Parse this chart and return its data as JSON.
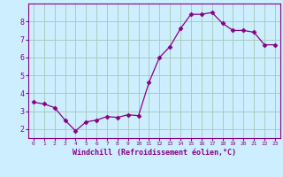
{
  "x": [
    0,
    1,
    2,
    3,
    4,
    5,
    6,
    7,
    8,
    9,
    10,
    11,
    12,
    13,
    14,
    15,
    16,
    17,
    18,
    19,
    20,
    21,
    22,
    23
  ],
  "y": [
    3.5,
    3.4,
    3.2,
    2.5,
    1.9,
    2.4,
    2.5,
    2.7,
    2.65,
    2.8,
    2.75,
    4.6,
    6.0,
    6.6,
    7.6,
    8.4,
    8.4,
    8.5,
    7.9,
    7.5,
    7.5,
    7.4,
    6.7,
    6.7
  ],
  "line_color": "#880088",
  "marker": "D",
  "marker_size": 2.5,
  "bg_color": "#cceeff",
  "grid_color": "#aaccbb",
  "xlabel": "Windchill (Refroidissement éolien,°C)",
  "ylabel_ticks": [
    2,
    3,
    4,
    5,
    6,
    7,
    8
  ],
  "xlim": [
    -0.5,
    23.5
  ],
  "ylim": [
    1.5,
    9.0
  ],
  "tick_color": "#880088",
  "spine_color": "#880088",
  "label_fontsize": 6.0,
  "tick_fontsize_x": 4.5,
  "tick_fontsize_y": 6.0
}
